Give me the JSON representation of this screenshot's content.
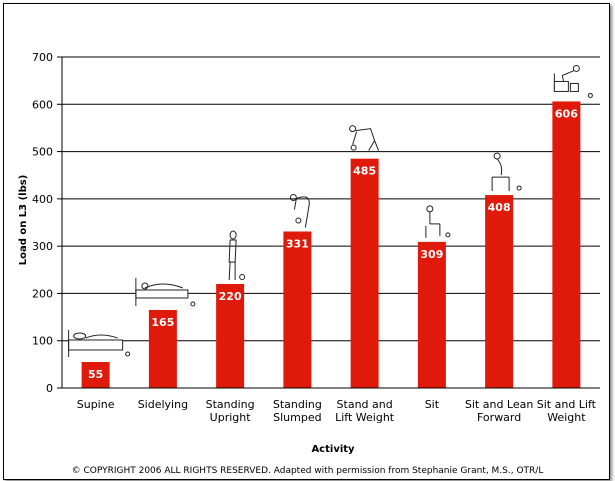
{
  "chart_data": {
    "type": "bar",
    "categories": [
      [
        "Supine"
      ],
      [
        "Sidelying"
      ],
      [
        "Standing",
        "Upright"
      ],
      [
        "Standing",
        "Slumped"
      ],
      [
        "Stand and",
        "Lift Weight"
      ],
      [
        "Sit"
      ],
      [
        "Sit and Lean",
        "Forward"
      ],
      [
        "Sit and Lift",
        "Weight"
      ]
    ],
    "values": [
      55,
      165,
      220,
      331,
      485,
      309,
      408,
      606
    ],
    "data_labels": [
      "55",
      "165",
      "220",
      "331",
      "485",
      "309",
      "408",
      "606"
    ],
    "xlabel": "Activity",
    "ylabel": "Load  on L3 (lbs)",
    "ylim": [
      0,
      700
    ],
    "yticks": [
      "0",
      "100",
      "200",
      "300",
      "400",
      "500",
      "600",
      "700"
    ],
    "grid": true,
    "legend": "none",
    "bar_color": "#e01a0a"
  },
  "footer": {
    "copyright": "© COPYRIGHT 2006 ALL RIGHTS RESERVED. Adapted with permission from Stephanie Grant, M.S., OTR/L"
  },
  "illustrations": [
    "person-lying-supine-icon",
    "person-sidelying-icon",
    "person-standing-upright-icon",
    "person-standing-slumped-icon",
    "person-lifting-weight-icon",
    "person-sitting-icon",
    "person-sitting-leaning-icon",
    "person-sitting-lifting-icon"
  ]
}
